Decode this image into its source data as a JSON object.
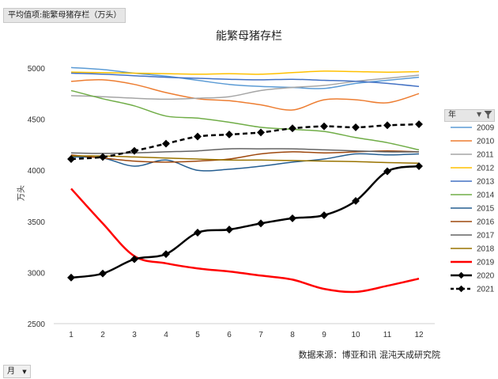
{
  "header": {
    "field_button": "平均值项:能繁母猪存栏（万头）"
  },
  "axis_field": {
    "label": "月",
    "icon": "dropdown-arrow-icon"
  },
  "legend_field": {
    "label": "年",
    "icons": [
      "dropdown-arrow-icon",
      "filter-icon"
    ]
  },
  "source_note": "数据来源：博亚和讯 混沌天成研究院",
  "chart_data": {
    "type": "line",
    "title": "能繁母猪存栏",
    "ylabel": "万头",
    "xlabel": "",
    "categories": [
      "1",
      "2",
      "3",
      "4",
      "5",
      "6",
      "7",
      "8",
      "9",
      "10",
      "11",
      "12"
    ],
    "ylim": [
      2500,
      5000
    ],
    "yticks": [
      2500,
      3000,
      3500,
      4000,
      4500,
      5000
    ],
    "grid": false,
    "legend_position": "right",
    "series": [
      {
        "name": "2009",
        "color": "#5B9BD5",
        "width": 1.5,
        "dash": "",
        "marker": false,
        "values": [
          5005,
          4985,
          4950,
          4920,
          4880,
          4840,
          4820,
          4810,
          4800,
          4850,
          4880,
          4910
        ]
      },
      {
        "name": "2010",
        "color": "#ED7D31",
        "width": 1.5,
        "dash": "",
        "marker": false,
        "values": [
          4870,
          4885,
          4840,
          4760,
          4700,
          4680,
          4640,
          4590,
          4690,
          4690,
          4660,
          4750
        ]
      },
      {
        "name": "2011",
        "color": "#A5A5A5",
        "width": 1.5,
        "dash": "",
        "marker": false,
        "values": [
          4730,
          4720,
          4705,
          4695,
          4705,
          4720,
          4780,
          4810,
          4830,
          4870,
          4900,
          4930
        ]
      },
      {
        "name": "2012",
        "color": "#FFC000",
        "width": 1.5,
        "dash": "",
        "marker": false,
        "values": [
          4960,
          4955,
          4950,
          4945,
          4940,
          4945,
          4940,
          4955,
          4970,
          4965,
          4960,
          4965
        ]
      },
      {
        "name": "2013",
        "color": "#4472C4",
        "width": 1.5,
        "dash": "",
        "marker": false,
        "values": [
          4950,
          4940,
          4925,
          4910,
          4900,
          4890,
          4885,
          4890,
          4880,
          4870,
          4850,
          4820
        ]
      },
      {
        "name": "2014",
        "color": "#70AD47",
        "width": 1.5,
        "dash": "",
        "marker": false,
        "values": [
          4780,
          4700,
          4630,
          4530,
          4510,
          4470,
          4420,
          4400,
          4380,
          4320,
          4270,
          4200
        ]
      },
      {
        "name": "2015",
        "color": "#255E91",
        "width": 1.5,
        "dash": "",
        "marker": false,
        "values": [
          4130,
          4120,
          4040,
          4100,
          4000,
          4010,
          4040,
          4080,
          4110,
          4160,
          4150,
          4160
        ]
      },
      {
        "name": "2016",
        "color": "#9E480E",
        "width": 1.5,
        "dash": "",
        "marker": false,
        "values": [
          4150,
          4120,
          4090,
          4080,
          4090,
          4110,
          4160,
          4180,
          4170,
          4180,
          4190,
          4180
        ]
      },
      {
        "name": "2017",
        "color": "#636363",
        "width": 1.5,
        "dash": "",
        "marker": false,
        "values": [
          4170,
          4165,
          4170,
          4180,
          4190,
          4210,
          4210,
          4210,
          4200,
          4190,
          4180,
          4180
        ]
      },
      {
        "name": "2018",
        "color": "#997300",
        "width": 1.5,
        "dash": "",
        "marker": false,
        "values": [
          4140,
          4140,
          4130,
          4120,
          4110,
          4100,
          4100,
          4095,
          4090,
          4085,
          4075,
          4070
        ]
      },
      {
        "name": "2019",
        "color": "#FF0000",
        "width": 2.5,
        "dash": "",
        "marker": false,
        "values": [
          3820,
          3480,
          3160,
          3090,
          3040,
          3010,
          2970,
          2930,
          2840,
          2810,
          2870,
          2940
        ]
      },
      {
        "name": "2020",
        "color": "#000000",
        "width": 2.5,
        "dash": "",
        "marker": true,
        "values": [
          2950,
          2990,
          3130,
          3180,
          3390,
          3420,
          3480,
          3530,
          3560,
          3700,
          3990,
          4040
        ]
      },
      {
        "name": "2021",
        "color": "#000000",
        "width": 2.5,
        "dash": "6,4",
        "marker": true,
        "values": [
          4110,
          4130,
          4190,
          4260,
          4330,
          4350,
          4370,
          4410,
          4430,
          4420,
          4440,
          4450
        ]
      }
    ]
  }
}
